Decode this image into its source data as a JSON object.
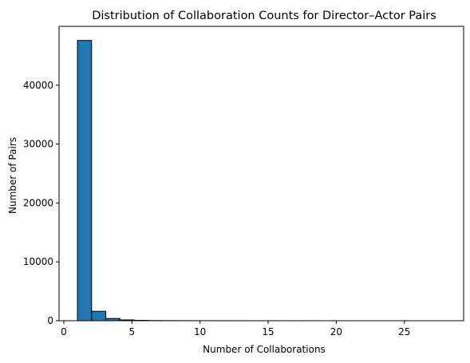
{
  "chart_data": {
    "type": "bar",
    "title": "Distribution of Collaboration Counts for Director–Actor Pairs",
    "xlabel": "Number of Collaborations",
    "ylabel": "Number of Pairs",
    "xlim": [
      -0.35,
      29.35
    ],
    "ylim": [
      0,
      50000
    ],
    "xticks": [
      0,
      5,
      10,
      15,
      20,
      25
    ],
    "yticks": [
      0,
      10000,
      20000,
      30000,
      40000
    ],
    "grid": false,
    "bar_color": "#1f77b4",
    "edge_color": "#000000",
    "bins": {
      "start": 1,
      "end": 28,
      "count": 26
    },
    "values": [
      47600,
      1600,
      380,
      140,
      60,
      30,
      15,
      10,
      8,
      6,
      5,
      4,
      3,
      3,
      2,
      2,
      2,
      1,
      1,
      1,
      1,
      1,
      1,
      1,
      1,
      1
    ]
  }
}
